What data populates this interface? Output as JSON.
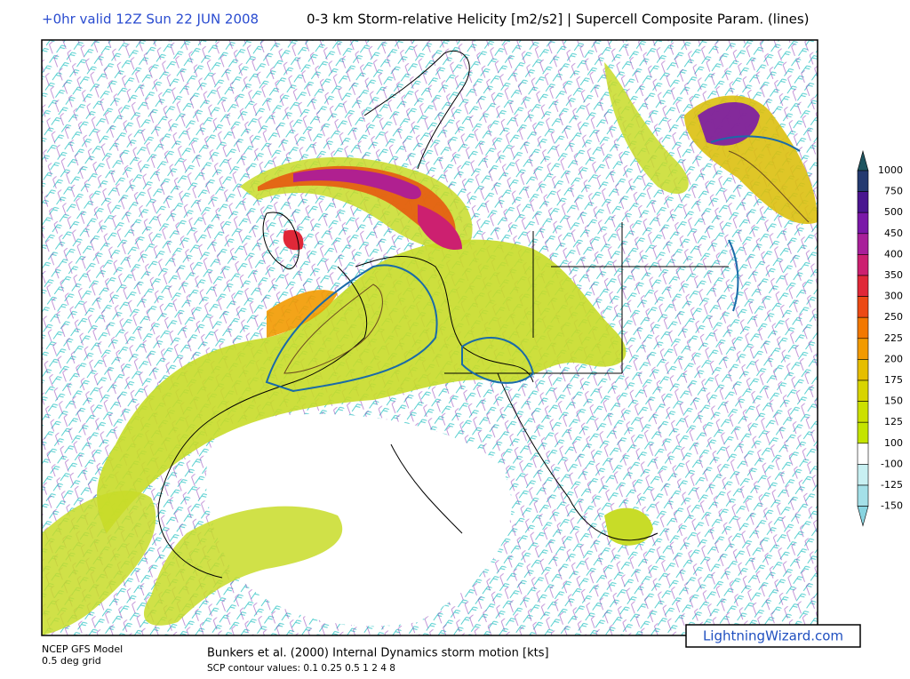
{
  "header": {
    "valid_time": "+0hr valid 12Z Sun 22 JUN 2008",
    "title": "0-3 km Storm-relative Helicity [m2/s2] | Supercell Composite Param. (lines)"
  },
  "colorbar": {
    "levels": [
      1000,
      750,
      500,
      450,
      400,
      350,
      300,
      250,
      225,
      200,
      175,
      150,
      125,
      100,
      -100,
      -125,
      -150
    ],
    "colors": [
      "#1e5560",
      "#243a70",
      "#4a1690",
      "#7a18a8",
      "#a8209a",
      "#cc2070",
      "#e02838",
      "#ec4a14",
      "#f27800",
      "#f29a00",
      "#e6be00",
      "#d8d400",
      "#cce000",
      "#c4e400",
      "#ffffff",
      "#c8f0f2",
      "#a4e0e8",
      "#88d4e0"
    ]
  },
  "footer": {
    "model": "NCEP GFS Model",
    "grid": "0.5 deg grid",
    "storm_motion": "Bunkers et al. (2000) Internal Dynamics storm motion [kts]",
    "scp_contours": "SCP contour values: 0.1 0.25 0.5 1 2 4 8",
    "watermark": "LightningWizard.com"
  }
}
